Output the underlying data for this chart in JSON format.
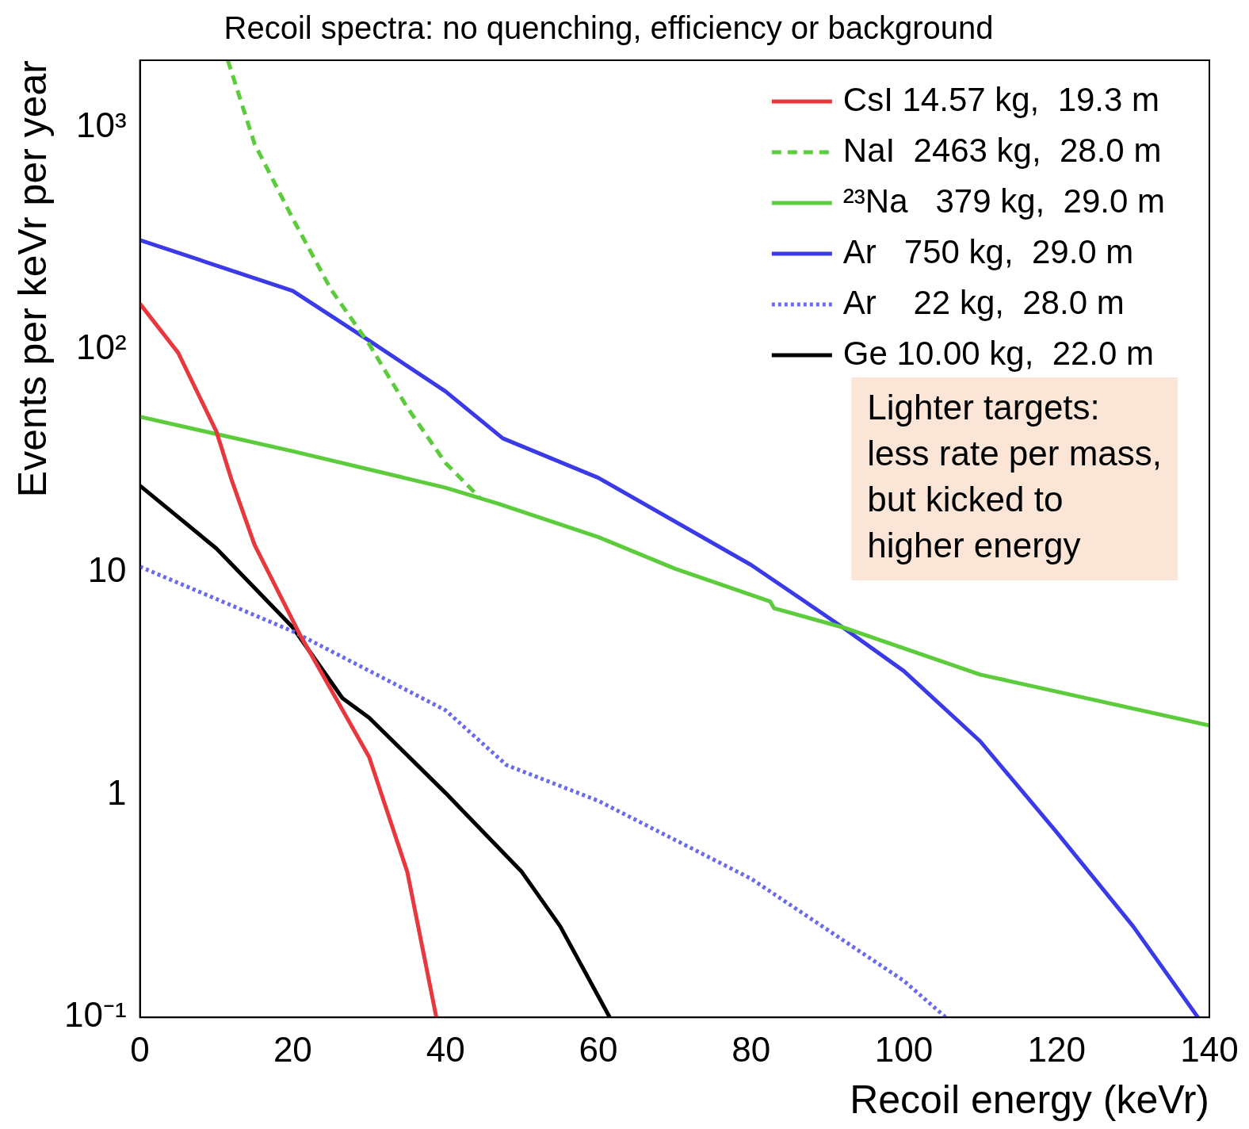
{
  "chart_data": {
    "type": "line",
    "title": "Recoil spectra: no quenching, efficiency or background",
    "xlabel": "Recoil energy (keVr)",
    "ylabel": "Events per keVr per year",
    "log": "y",
    "grid": false,
    "legend": "top right",
    "marker": "none",
    "xlim": [
      0,
      140
    ],
    "xticks": [
      0,
      20,
      40,
      60,
      80,
      100,
      120,
      140
    ],
    "ylim": [
      0.1,
      2000
    ],
    "yticks": [
      {
        "value": 0.1,
        "label": "10⁻¹"
      },
      1,
      10,
      {
        "value": 100,
        "label": "10²"
      },
      {
        "value": 1000,
        "label": "10³"
      }
    ],
    "series": [
      {
        "name": "CsI 14.57 kg,  19.3 m",
        "color": "#e8383d",
        "line_style": "solid",
        "x": [
          0,
          5,
          10,
          12,
          15,
          21,
          30,
          35,
          38.8
        ],
        "values": [
          161,
          97,
          43,
          26,
          13.3,
          5.2,
          1.48,
          0.45,
          0.1
        ]
      },
      {
        "name": "NaI  2463 kg,  28.0 m",
        "color": "#5ccc3c",
        "line_style": "dashed",
        "x": [
          11.5,
          15,
          20,
          25,
          30,
          35,
          40,
          44.5
        ],
        "values": [
          2000,
          843,
          389,
          187,
          106,
          55,
          31,
          21.6
        ]
      },
      {
        "name": "²³Na   379 kg,  29.0 m",
        "color": "#5ccc3c",
        "line_style": "solid",
        "x": [
          0,
          20,
          40,
          47,
          60,
          70,
          82.5,
          83,
          92,
          110,
          140
        ],
        "values": [
          50,
          35,
          24,
          20.3,
          14.4,
          10.4,
          7.4,
          6.9,
          5.66,
          3.47,
          2.05
        ]
      },
      {
        "name": "Ar   750 kg,  29.0 m",
        "color": "#3a3ae8",
        "line_style": "solid",
        "x": [
          0,
          20,
          30,
          40,
          47.5,
          60,
          80,
          92,
          100,
          110,
          120,
          130,
          138.5
        ],
        "values": [
          311,
          184,
          110,
          65,
          40,
          26.6,
          10.8,
          5.66,
          3.6,
          1.74,
          0.68,
          0.257,
          0.1
        ]
      },
      {
        "name": "Ar    22 kg,  28.0 m",
        "color": "#6a6af0",
        "line_style": "dotted",
        "x": [
          0,
          20,
          40,
          48,
          60,
          80,
          100,
          105.5
        ],
        "values": [
          10.6,
          5.43,
          2.4,
          1.36,
          0.94,
          0.42,
          0.146,
          0.1
        ]
      },
      {
        "name": "Ge 10.00 kg,  22.0 m",
        "color": "#000000",
        "line_style": "solid",
        "x": [
          0,
          10,
          20,
          26.5,
          30,
          40,
          50,
          55,
          61.5
        ],
        "values": [
          24.5,
          12.8,
          5.66,
          2.72,
          2.22,
          1.02,
          0.45,
          0.257,
          0.1
        ]
      }
    ],
    "annotations": [
      "Lighter targets:\nless rate per mass,\nbut kicked to\nhigher energy"
    ]
  }
}
